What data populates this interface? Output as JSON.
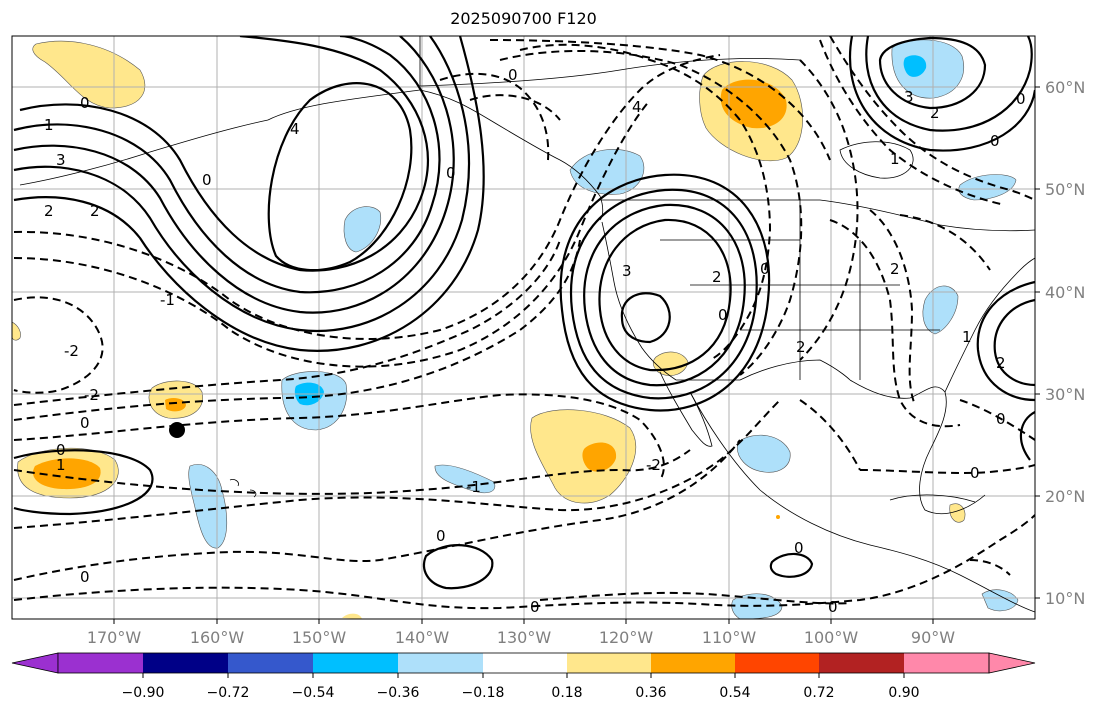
{
  "title": "2025090700 F120",
  "lon_labels": [
    "170°W",
    "160°W",
    "150°W",
    "140°W",
    "130°W",
    "120°W",
    "110°W",
    "100°W",
    "90°W"
  ],
  "lat_labels": [
    "60°N",
    "50°N",
    "40°N",
    "30°N",
    "20°N",
    "10°N"
  ],
  "colorbar": {
    "tick_labels": [
      "−0.90",
      "−0.72",
      "−0.54",
      "−0.36",
      "−0.18",
      "0.18",
      "0.36",
      "0.54",
      "0.72",
      "0.90"
    ],
    "colors": [
      "#9b30d0",
      "#000087",
      "#3558cc",
      "#00bfff",
      "#aee0fa",
      "#ffffff",
      "#ffe78c",
      "#ffa500",
      "#ff4500",
      "#b22222",
      "#ff88aa"
    ]
  },
  "contour_labels": {
    "zero": "0",
    "one": "1",
    "two": "2",
    "three": "3",
    "four": "4",
    "neg_one": "-1",
    "neg_two": "-2"
  },
  "marker": {
    "name": "black-dot",
    "lon": -164,
    "lat": 26.5
  }
}
